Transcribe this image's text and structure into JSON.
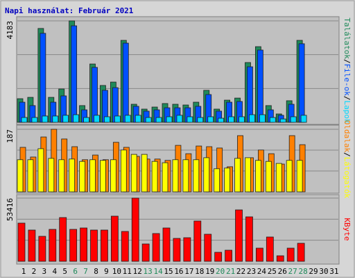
{
  "title": "Napi használat: Február 2021",
  "separator": "/",
  "chart_data": [
    {
      "type": "bar",
      "ylim": [
        0,
        4183
      ],
      "yticks": [
        4183
      ],
      "series": [
        {
          "name": "Találatok",
          "color": "#1f8a5a",
          "values": [
            974,
            1030,
            3870,
            1030,
            1375,
            4183,
            690,
            2405,
            1520,
            1660,
            3380,
            745,
            545,
            630,
            775,
            745,
            715,
            830,
            1320,
            545,
            915,
            1000,
            2465,
            3120,
            690,
            345,
            890,
            3380,
            null,
            null,
            null
          ]
        },
        {
          "name": "File-ok",
          "color": "#0050ff",
          "values": [
            830,
            690,
            3670,
            830,
            1090,
            3980,
            515,
            2265,
            1320,
            1430,
            3265,
            660,
            460,
            515,
            600,
            600,
            600,
            660,
            1145,
            460,
            830,
            860,
            2290,
            2980,
            515,
            290,
            745,
            3240,
            null,
            null,
            null
          ]
        },
        {
          "name": "Lapok",
          "color": "#00d8ff",
          "values": [
            200,
            200,
            260,
            260,
            290,
            315,
            200,
            290,
            230,
            260,
            290,
            290,
            200,
            200,
            230,
            290,
            230,
            200,
            230,
            170,
            230,
            230,
            315,
            315,
            200,
            140,
            230,
            290,
            null,
            null,
            null
          ]
        }
      ]
    },
    {
      "type": "bar",
      "ylim": [
        0,
        187
      ],
      "yticks": [
        187
      ],
      "series": [
        {
          "name": "Oldalak",
          "color": "#ff8000",
          "values": [
            133,
            104,
            164,
            187,
            158,
            135,
            96,
            110,
            96,
            148,
            133,
            106,
            98,
            98,
            94,
            139,
            114,
            137,
            135,
            131,
            75,
            168,
            102,
            125,
            114,
            83,
            168,
            141,
            null,
            null,
            null
          ]
        },
        {
          "name": "Látogatók",
          "color": "#ffff00",
          "values": [
            96,
            96,
            129,
            100,
            96,
            98,
            91,
            96,
            94,
            96,
            125,
            112,
            112,
            91,
            87,
            96,
            96,
            96,
            102,
            69,
            71,
            100,
            102,
            94,
            91,
            85,
            94,
            94,
            null,
            null,
            null
          ]
        }
      ]
    },
    {
      "type": "bar",
      "ylim": [
        0,
        53416
      ],
      "yticks": [
        53416
      ],
      "categories": [
        "1",
        "2",
        "3",
        "4",
        "5",
        "6",
        "7",
        "8",
        "9",
        "10",
        "11",
        "12",
        "13",
        "14",
        "15",
        "16",
        "17",
        "18",
        "19",
        "20",
        "21",
        "22",
        "23",
        "24",
        "25",
        "26",
        "27",
        "28",
        "29",
        "30",
        "31"
      ],
      "category_colors": [
        "#000000",
        "#000000",
        "#000000",
        "#000000",
        "#000000",
        "#1f8a5a",
        "#1f8a5a",
        "#000000",
        "#000000",
        "#000000",
        "#000000",
        "#000000",
        "#1f8a5a",
        "#1f8a5a",
        "#000000",
        "#000000",
        "#000000",
        "#000000",
        "#000000",
        "#1f8a5a",
        "#1f8a5a",
        "#000000",
        "#000000",
        "#000000",
        "#000000",
        "#000000",
        "#1f8a5a",
        "#1f8a5a",
        "#000000",
        "#000000",
        "#000000"
      ],
      "series": [
        {
          "name": "KByte",
          "color": "#ff0000",
          "values": [
            32280,
            26415,
            21130,
            27000,
            36980,
            27000,
            28175,
            26415,
            26415,
            38155,
            25240,
            53416,
            14675,
            23480,
            28175,
            19370,
            19960,
            34045,
            22890,
            7630,
            9390,
            43440,
            37570,
            11150,
            20545,
            4695,
            11150,
            15260,
            null,
            null,
            null
          ]
        }
      ]
    }
  ]
}
